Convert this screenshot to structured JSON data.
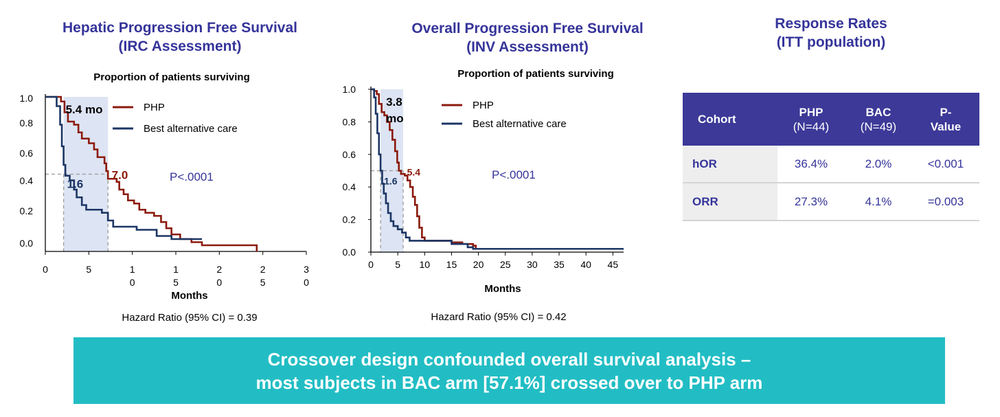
{
  "titles": {
    "left": [
      "Hepatic Progression Free Survival",
      "(IRC Assessment)"
    ],
    "middle": [
      "Overall Progression Free Survival",
      "(INV Assessment)"
    ],
    "right": [
      "Response Rates",
      "(ITT population)"
    ]
  },
  "colors": {
    "title": "#35349a",
    "php": "#8b1a0c",
    "bac": "#1b3564",
    "shade": "#dde4f3",
    "banner": "#22bdc4",
    "table_header": "#3c3998"
  },
  "chart_data": [
    {
      "type": "line",
      "title": "Proportion of patients surviving",
      "xlabel": "Months",
      "xlim": [
        0,
        30
      ],
      "ylim": [
        0,
        1.0
      ],
      "x_ticks": [
        "0",
        "5",
        "1\n0",
        "1\n5",
        "2\n0",
        "2\n5",
        "3\n0"
      ],
      "y_ticks": [
        "0.0",
        "0.2",
        "0.4",
        "0.6",
        "0.8",
        "1.0"
      ],
      "y_tick_values": [
        0,
        0.2,
        0.4,
        0.6,
        0.8,
        1.0
      ],
      "series": [
        {
          "name": "PHP",
          "points": [
            [
              0,
              1.0
            ],
            [
              1.4,
              1.0
            ],
            [
              1.8,
              0.97
            ],
            [
              2.2,
              0.9
            ],
            [
              2.6,
              0.84
            ],
            [
              3.3,
              0.82
            ],
            [
              3.8,
              0.77
            ],
            [
              4.2,
              0.73
            ],
            [
              5,
              0.7
            ],
            [
              5.6,
              0.66
            ],
            [
              6,
              0.61
            ],
            [
              6.8,
              0.57
            ],
            [
              7.0,
              0.52
            ],
            [
              7.2,
              0.47
            ],
            [
              8.2,
              0.45
            ],
            [
              8.5,
              0.4
            ],
            [
              9,
              0.37
            ],
            [
              9.5,
              0.33
            ],
            [
              10.2,
              0.31
            ],
            [
              10.8,
              0.27
            ],
            [
              11.5,
              0.25
            ],
            [
              12.5,
              0.23
            ],
            [
              13.3,
              0.19
            ],
            [
              13.9,
              0.15
            ],
            [
              14.5,
              0.11
            ],
            [
              15.5,
              0.08
            ],
            [
              16.8,
              0.06
            ],
            [
              18,
              0.04
            ],
            [
              22,
              0.04
            ],
            [
              24.3,
              0.03
            ],
            [
              24.3,
              0.0
            ]
          ]
        },
        {
          "name": "Best alternative care",
          "points": [
            [
              0,
              1.0
            ],
            [
              1.3,
              0.94
            ],
            [
              1.7,
              0.82
            ],
            [
              1.9,
              0.68
            ],
            [
              2.1,
              0.56
            ],
            [
              2.3,
              0.49
            ],
            [
              2.8,
              0.46
            ],
            [
              3.3,
              0.4
            ],
            [
              3.6,
              0.35
            ],
            [
              4.2,
              0.3
            ],
            [
              4.7,
              0.27
            ],
            [
              6.5,
              0.25
            ],
            [
              7.2,
              0.2
            ],
            [
              7.8,
              0.16
            ],
            [
              9.5,
              0.16
            ],
            [
              10.5,
              0.14
            ],
            [
              12.8,
              0.1
            ],
            [
              14.5,
              0.08
            ],
            [
              16,
              0.08
            ],
            [
              18,
              0.08
            ]
          ]
        }
      ],
      "median_labels": [
        {
          "series": "PHP",
          "text": "7.0",
          "x": 7.0
        },
        {
          "series": "Best alternative care",
          "text": "1.6",
          "x": 2.1
        }
      ],
      "shaded_difference": {
        "text": "5.4 mo",
        "x_range": [
          2.1,
          7.2
        ]
      },
      "median_y": 0.5,
      "annotation": "P<.0001",
      "footnote": "Hazard Ratio (95% CI) = 0.39"
    },
    {
      "type": "line",
      "title": "Proportion of patients surviving",
      "xlabel": "Months",
      "xlim": [
        0,
        47
      ],
      "ylim": [
        0,
        1.0
      ],
      "x_ticks": [
        "0",
        "5",
        "10",
        "15",
        "20",
        "25",
        "30",
        "35",
        "40",
        "45"
      ],
      "x_tick_values": [
        0,
        5,
        10,
        15,
        20,
        25,
        30,
        35,
        40,
        45
      ],
      "y_ticks": [
        "0.0",
        "0.2",
        "0.4",
        "0.6",
        "0.8",
        "1.0"
      ],
      "y_tick_values": [
        0,
        0.2,
        0.4,
        0.6,
        0.8,
        1.0
      ],
      "series": [
        {
          "name": "PHP",
          "points": [
            [
              0,
              1.0
            ],
            [
              0.6,
              0.99
            ],
            [
              1.1,
              0.97
            ],
            [
              1.5,
              0.91
            ],
            [
              2,
              0.86
            ],
            [
              2.5,
              0.84
            ],
            [
              3,
              0.8
            ],
            [
              3.5,
              0.75
            ],
            [
              4,
              0.69
            ],
            [
              4.5,
              0.62
            ],
            [
              4.9,
              0.55
            ],
            [
              5.2,
              0.5
            ],
            [
              5.6,
              0.48
            ],
            [
              6.3,
              0.47
            ],
            [
              6.8,
              0.44
            ],
            [
              7.3,
              0.4
            ],
            [
              7.8,
              0.34
            ],
            [
              8.2,
              0.29
            ],
            [
              8.6,
              0.22
            ],
            [
              9,
              0.15
            ],
            [
              9.5,
              0.09
            ],
            [
              10,
              0.07
            ],
            [
              13,
              0.07
            ],
            [
              15,
              0.06
            ],
            [
              17,
              0.05
            ],
            [
              19,
              0.04
            ],
            [
              19.5,
              0.02
            ],
            [
              47,
              0.02
            ]
          ]
        },
        {
          "name": "Best alternative care",
          "points": [
            [
              0,
              1.0
            ],
            [
              0.6,
              0.95
            ],
            [
              0.9,
              0.85
            ],
            [
              1.2,
              0.73
            ],
            [
              1.5,
              0.6
            ],
            [
              1.8,
              0.5
            ],
            [
              2.1,
              0.42
            ],
            [
              2.4,
              0.36
            ],
            [
              2.8,
              0.3
            ],
            [
              3.2,
              0.24
            ],
            [
              3.7,
              0.19
            ],
            [
              4.2,
              0.16
            ],
            [
              5,
              0.14
            ],
            [
              5.8,
              0.12
            ],
            [
              6.5,
              0.09
            ],
            [
              7.2,
              0.07
            ],
            [
              12,
              0.07
            ],
            [
              15,
              0.05
            ],
            [
              18,
              0.03
            ],
            [
              19,
              0.02
            ],
            [
              47,
              0.02
            ]
          ]
        }
      ],
      "median_labels": [
        {
          "series": "PHP",
          "text": "5.4",
          "x": 5.7
        },
        {
          "series": "Best alternative care",
          "text": "1.6",
          "x": 1.8
        }
      ],
      "shaded_difference": {
        "text": "3.8\nmo",
        "x_range": [
          1.8,
          6.0
        ]
      },
      "median_y": 0.5,
      "annotation": "P<.0001",
      "footnote": "Hazard Ratio (95% CI) = 0.42"
    }
  ],
  "legend": {
    "php": "PHP",
    "bac": "Best alternative care"
  },
  "response_table": {
    "header": {
      "cohort": "Cohort",
      "php_top": "PHP",
      "php_bottom": "(N=44)",
      "bac_top": "BAC",
      "bac_bottom": "(N=49)",
      "p_top": "P-",
      "p_bottom": "Value"
    },
    "rows": [
      {
        "label": "hOR",
        "php": "36.4%",
        "bac": "2.0%",
        "p": "<0.001"
      },
      {
        "label": "ORR",
        "php": "27.3%",
        "bac": "4.1%",
        "p": "=0.003"
      }
    ]
  },
  "banner": [
    "Crossover design confounded overall survival analysis –",
    "most subjects in BAC arm [57.1%] crossed over to PHP arm"
  ]
}
